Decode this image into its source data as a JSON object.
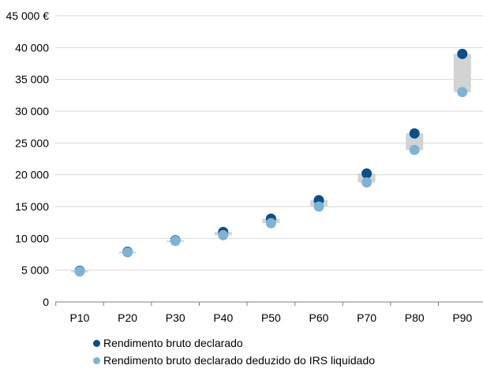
{
  "chart_data": {
    "type": "scatter",
    "categories": [
      "P10",
      "P20",
      "P30",
      "P40",
      "P50",
      "P60",
      "P70",
      "P80",
      "P90"
    ],
    "series": [
      {
        "name": "Rendimento bruto declarado",
        "color": "#0b4f85",
        "values": [
          4900,
          7900,
          9700,
          11000,
          13100,
          16000,
          20200,
          26500,
          39000
        ]
      },
      {
        "name": "Rendimento bruto declarado deduzido do IRS liquidado",
        "color": "#7fb3d5",
        "values": [
          4800,
          7800,
          9600,
          10500,
          12400,
          15000,
          18800,
          23900,
          33000
        ]
      }
    ],
    "range_band_color": "#d3d3d3",
    "ylim": [
      0,
      45000
    ],
    "yticks": [
      0,
      5000,
      10000,
      15000,
      20000,
      25000,
      30000,
      35000,
      40000,
      45000
    ],
    "ytick_labels": [
      "0",
      "5 000",
      "10 000",
      "15 000",
      "20 000",
      "25 000",
      "30 000",
      "35 000",
      "40 000",
      "45 000 €"
    ],
    "grid": "horizontal",
    "legend_position": "bottom-left"
  }
}
